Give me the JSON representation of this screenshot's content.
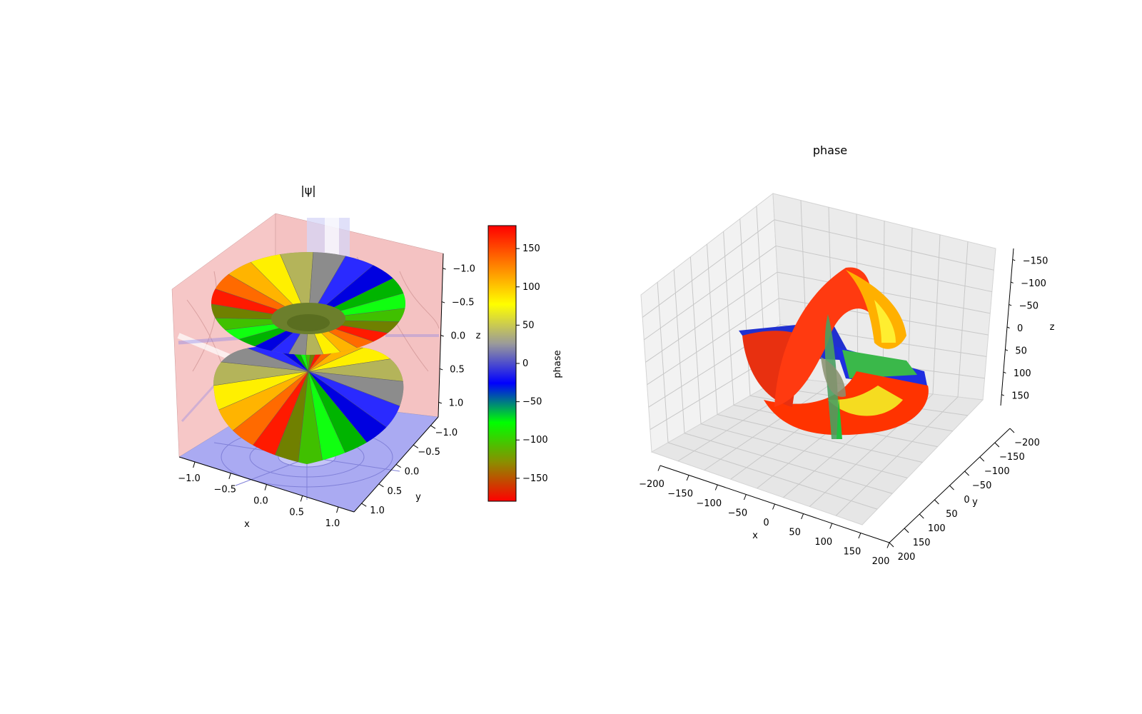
{
  "chart_data": [
    {
      "type": "surface3d",
      "title": "|ψ|",
      "xlabel": "x",
      "ylabel": "y",
      "zlabel": "z",
      "xticks": [
        "−1.0",
        "−0.5",
        "0.0",
        "0.5",
        "1.0"
      ],
      "yticks": [
        "−1.0",
        "−0.5",
        "0.0",
        "0.5",
        "1.0"
      ],
      "zticks": [
        "−1.0",
        "−0.5",
        "0.0",
        "0.5",
        "1.0"
      ],
      "xlim": [
        -1.2,
        1.2
      ],
      "ylim": [
        -1.2,
        1.2
      ],
      "zlim": [
        -1.2,
        1.2
      ],
      "colorbar": {
        "label": "phase",
        "ticks": [
          "−150",
          "−100",
          "−50",
          "0",
          "50",
          "100",
          "150"
        ],
        "tick_values": [
          -150,
          -100,
          -50,
          0,
          50,
          100,
          150
        ],
        "range": [
          -180,
          180
        ],
        "colormap": [
          "#ff0000",
          "#8a8f00",
          "#00ff00",
          "#0000ff",
          "#9a9a9a",
          "#ffff00",
          "#ff8000",
          "#ff0000"
        ]
      },
      "surface": "two-lobed torus (dumbbell) colored by phase",
      "projections": "contour shading on back walls and floor"
    },
    {
      "type": "surface3d",
      "title": "phase",
      "xlabel": "x",
      "ylabel": "y",
      "zlabel": "z",
      "xticks": [
        "−200",
        "−150",
        "−100",
        "−50",
        "0",
        "50",
        "100",
        "150",
        "200"
      ],
      "yticks": [
        "−200",
        "−150",
        "−100",
        "−50",
        "0",
        "50",
        "100",
        "150",
        "200"
      ],
      "zticks": [
        "−150",
        "−100",
        "−50",
        "0",
        "50",
        "100",
        "150"
      ],
      "xlim": [
        -200,
        200
      ],
      "ylim": [
        -200,
        200
      ],
      "zlim": [
        -180,
        180
      ],
      "grid": true
    }
  ]
}
